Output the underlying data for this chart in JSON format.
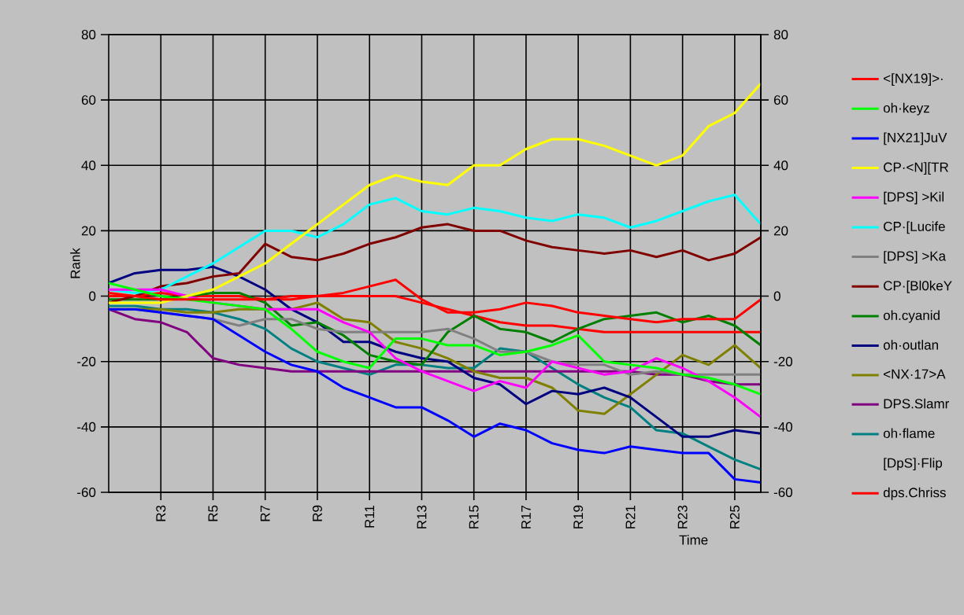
{
  "chart_data": {
    "type": "line",
    "xlabel": "Time",
    "ylabel": "Rank",
    "categories": [
      null,
      null,
      "R3",
      null,
      "R5",
      null,
      "R7",
      null,
      "R9",
      null,
      "R11",
      null,
      "R13",
      null,
      "R15",
      null,
      "R17",
      null,
      "R19",
      null,
      "R21",
      null,
      "R23",
      null,
      "R25",
      null
    ],
    "ylim": [
      -60,
      80
    ],
    "yticks": [
      -60,
      -40,
      -20,
      0,
      20,
      40,
      60,
      80
    ],
    "y2lim": [
      -60,
      80
    ],
    "y2ticks": [
      -60,
      -40,
      -20,
      0,
      20,
      40,
      60,
      80
    ],
    "grid": true,
    "legend": "right",
    "series": [
      {
        "name": "<[NX19]>·",
        "color": "#ff0000",
        "values": [
          1,
          0,
          -1,
          -1,
          -1,
          -1,
          -1,
          0,
          0,
          1,
          3,
          5,
          -1,
          -5,
          -5,
          -4,
          -2,
          -3,
          -5,
          -6,
          -7,
          -8,
          -7,
          -7,
          -7,
          -1
        ]
      },
      {
        "name": "oh·keyz",
        "color": "#00ff00",
        "values": [
          4,
          2,
          0,
          -1,
          -2,
          -3,
          -4,
          -10,
          -17,
          -20,
          -22,
          -13,
          -13,
          -15,
          -15,
          -18,
          -17,
          -15,
          -12,
          -20,
          -21,
          -22,
          -24,
          -25,
          -27,
          -30
        ]
      },
      {
        "name": "[NX21]JuV",
        "color": "#0000ff",
        "values": [
          -4,
          -4,
          -5,
          -6,
          -7,
          -12,
          -17,
          -21,
          -23,
          -28,
          -31,
          -34,
          -34,
          -38,
          -43,
          -39,
          -41,
          -45,
          -47,
          -48,
          -46,
          -47,
          -48,
          -48,
          -56,
          -57
        ]
      },
      {
        "name": "CP·<N][TR",
        "color": "#ffff00",
        "values": [
          -2,
          -2,
          -2,
          0,
          2,
          6,
          10,
          16,
          22,
          28,
          34,
          37,
          35,
          34,
          40,
          40,
          45,
          48,
          48,
          46,
          43,
          40,
          43,
          52,
          56,
          65
        ]
      },
      {
        "name": "[DPS] >Kil",
        "color": "#ff00ff",
        "values": [
          2,
          2,
          2,
          0,
          -2,
          -3,
          -4,
          -4,
          -4,
          -8,
          -11,
          -19,
          -23,
          -26,
          -29,
          -26,
          -28,
          -20,
          -22,
          -24,
          -23,
          -19,
          -22,
          -26,
          -31,
          -37
        ]
      },
      {
        "name": "CP·[Lucife",
        "color": "#00ffff",
        "values": [
          2,
          1,
          2,
          6,
          10,
          15,
          20,
          20,
          18,
          22,
          28,
          30,
          26,
          25,
          27,
          26,
          24,
          23,
          25,
          24,
          21,
          23,
          26,
          29,
          31,
          22
        ]
      },
      {
        "name": "[DPS] >Ka",
        "color": "#808080",
        "values": [
          -4,
          -4,
          -5,
          -6,
          -7,
          -9,
          -7,
          -7,
          -10,
          -11,
          -11,
          -11,
          -11,
          -10,
          -13,
          -17,
          -17,
          -20,
          -21,
          -21,
          -24,
          -23,
          -24,
          -24,
          -24,
          -24
        ]
      },
      {
        "name": "CP·[Bl0keY",
        "color": "#800000",
        "values": [
          -2,
          0,
          3,
          4,
          6,
          7,
          16,
          12,
          11,
          13,
          16,
          18,
          21,
          22,
          20,
          20,
          17,
          15,
          14,
          13,
          14,
          12,
          14,
          11,
          13,
          18
        ]
      },
      {
        "name": "oh.cyanid",
        "color": "#008000",
        "values": [
          -1,
          -1,
          -1,
          0,
          1,
          1,
          -2,
          -9,
          -8,
          -12,
          -18,
          -20,
          -21,
          -11,
          -6,
          -10,
          -11,
          -14,
          -10,
          -7,
          -6,
          -5,
          -8,
          -6,
          -9,
          -15
        ]
      },
      {
        "name": "oh·outlan",
        "color": "#000080",
        "values": [
          4,
          7,
          8,
          8,
          9,
          6,
          2,
          -4,
          -8,
          -14,
          -14,
          -17,
          -19,
          -20,
          -25,
          -27,
          -33,
          -29,
          -30,
          -28,
          -31,
          -37,
          -43,
          -43,
          -41,
          -42
        ]
      },
      {
        "name": "<NX·17>A",
        "color": "#808000",
        "values": [
          -4,
          -4,
          -4,
          -5,
          -5,
          -4,
          -4,
          -4,
          -2,
          -7,
          -8,
          -14,
          -16,
          -19,
          -23,
          -25,
          -25,
          -28,
          -35,
          -36,
          -30,
          -24,
          -18,
          -21,
          -15,
          -22
        ]
      },
      {
        "name": "DPS.Slamr",
        "color": "#800080",
        "values": [
          -4,
          -7,
          -8,
          -11,
          -19,
          -21,
          -22,
          -23,
          -23,
          -23,
          -23,
          -23,
          -23,
          -23,
          -23,
          -23,
          -23,
          -23,
          -23,
          -23,
          -23,
          -24,
          -24,
          -26,
          -27,
          -27
        ]
      },
      {
        "name": "oh·flame",
        "color": "#008080",
        "values": [
          -3,
          -3,
          -4,
          -4,
          -5,
          -7,
          -10,
          -16,
          -20,
          -22,
          -24,
          -21,
          -21,
          -22,
          -22,
          -16,
          -17,
          -22,
          -27,
          -31,
          -34,
          -41,
          -42,
          -46,
          -50,
          -53
        ]
      },
      {
        "name": "[DpS]·Flip",
        "values": [
          null,
          null,
          null,
          null,
          null,
          null,
          null,
          null,
          null,
          null,
          null,
          null,
          null,
          null,
          null,
          null,
          null,
          null,
          null,
          null,
          null,
          null,
          null,
          null,
          null,
          null
        ]
      },
      {
        "name": "dps.Chriss",
        "color": "#ff0000",
        "values": [
          0,
          0,
          1,
          0,
          0,
          0,
          -1,
          -1,
          0,
          0,
          0,
          0,
          -2,
          -4,
          -6,
          -8,
          -9,
          -9,
          -10,
          -11,
          -11,
          -11,
          -11,
          -11,
          -11,
          -11
        ]
      }
    ]
  }
}
